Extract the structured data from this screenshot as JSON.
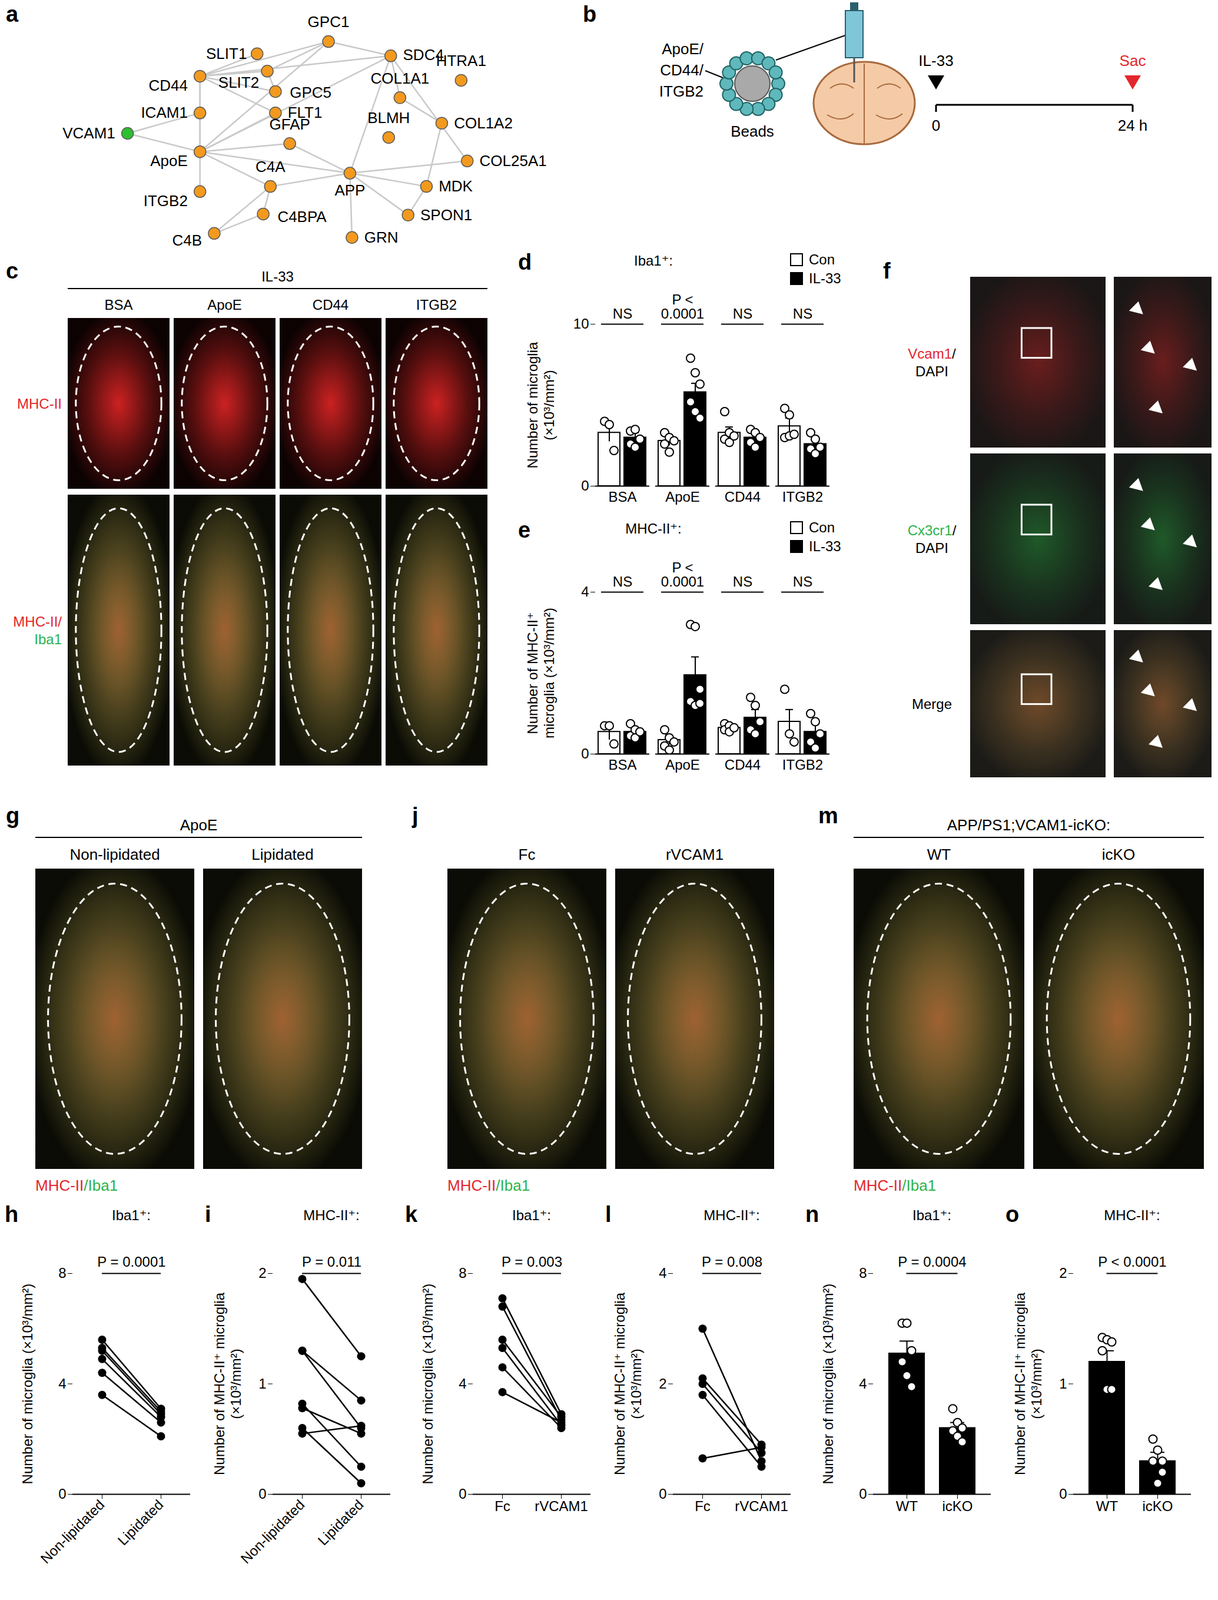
{
  "network": {
    "letter": "a",
    "nodes": [
      {
        "label": "SLIT1",
        "color": "#f39a1e"
      },
      {
        "label": "GPC1",
        "color": "#f39a1e"
      },
      {
        "label": "SLIT2",
        "color": "#f39a1e"
      },
      {
        "label": "GPC5",
        "color": "#f39a1e"
      },
      {
        "label": "SDC4",
        "color": "#f39a1e"
      },
      {
        "label": "CD44",
        "color": "#f39a1e"
      },
      {
        "label": "HTRA1",
        "color": "#f39a1e"
      },
      {
        "label": "COL1A1",
        "color": "#f39a1e"
      },
      {
        "label": "ICAM1",
        "color": "#f39a1e"
      },
      {
        "label": "FLT1",
        "color": "#f39a1e"
      },
      {
        "label": "COL1A2",
        "color": "#f39a1e"
      },
      {
        "label": "VCAM1",
        "color": "#2ec02e"
      },
      {
        "label": "GFAP",
        "color": "#f39a1e"
      },
      {
        "label": "BLMH",
        "color": "#f39a1e"
      },
      {
        "label": "ApoE",
        "color": "#f39a1e"
      },
      {
        "label": "APP",
        "color": "#f39a1e"
      },
      {
        "label": "COL25A1",
        "color": "#f39a1e"
      },
      {
        "label": "C4A",
        "color": "#f39a1e"
      },
      {
        "label": "MDK",
        "color": "#f39a1e"
      },
      {
        "label": "ITGB2",
        "color": "#f39a1e"
      },
      {
        "label": "C4BPA",
        "color": "#f39a1e"
      },
      {
        "label": "SPON1",
        "color": "#f39a1e"
      },
      {
        "label": "C4B",
        "color": "#f39a1e"
      },
      {
        "label": "GRN",
        "color": "#f39a1e"
      }
    ],
    "edges": [
      [
        "VCAM1",
        "ICAM1"
      ],
      [
        "VCAM1",
        "ApoE"
      ],
      [
        "CD44",
        "ICAM1"
      ],
      [
        "CD44",
        "ApoE"
      ],
      [
        "CD44",
        "SLIT1"
      ],
      [
        "CD44",
        "SLIT2"
      ],
      [
        "CD44",
        "GPC5"
      ],
      [
        "CD44",
        "FLT1"
      ],
      [
        "CD44",
        "SDC4"
      ],
      [
        "CD44",
        "GPC1"
      ],
      [
        "ICAM1",
        "ApoE"
      ],
      [
        "ApoE",
        "ITGB2"
      ],
      [
        "ApoE",
        "GPC1"
      ],
      [
        "ApoE",
        "FLT1"
      ],
      [
        "ApoE",
        "C4A"
      ],
      [
        "ApoE",
        "APP"
      ],
      [
        "ApoE",
        "GFAP"
      ],
      [
        "ApoE",
        "SDC4"
      ],
      [
        "APP",
        "GFAP"
      ],
      [
        "APP",
        "SDC4"
      ],
      [
        "APP",
        "MDK"
      ],
      [
        "APP",
        "GRN"
      ],
      [
        "APP",
        "SPON1"
      ],
      [
        "APP",
        "COL25A1"
      ],
      [
        "APP",
        "C4A"
      ],
      [
        "C4A",
        "C4B"
      ],
      [
        "C4A",
        "C4BPA"
      ],
      [
        "C4B",
        "C4BPA"
      ],
      [
        "SDC4",
        "COL1A1"
      ],
      [
        "SDC4",
        "COL25A1"
      ],
      [
        "SDC4",
        "GPC1"
      ],
      [
        "COL1A1",
        "COL1A2"
      ],
      [
        "COL1A2",
        "MDK"
      ],
      [
        "GPC1",
        "SLIT2"
      ],
      [
        "GPC5",
        "SLIT2"
      ],
      [
        "MDK",
        "SPON1"
      ]
    ]
  },
  "schematic": {
    "letter": "b",
    "bead_label": [
      "ApoE/",
      "CD44/",
      "ITGB2"
    ],
    "bead_caption": "Beads",
    "timeline": [
      {
        "label": "IL-33",
        "time": "0",
        "color": "#000000"
      },
      {
        "label": "Sac",
        "time": "24 h",
        "color": "#e3262b"
      }
    ]
  },
  "image_panels": [
    {
      "letter": "c",
      "title": "IL-33",
      "columns": [
        "BSA",
        "ApoE",
        "CD44",
        "ITGB2"
      ],
      "rows": [
        [
          [
            {
              "text": "MHC-II",
              "color": "#e3262b"
            }
          ]
        ],
        [
          [
            {
              "text": "MHC-II/",
              "color": "#e3262b"
            }
          ],
          [
            {
              "text": "Iba1",
              "color": "#2db34a"
            }
          ]
        ]
      ]
    },
    {
      "letter": "f",
      "rows": [
        [
          [
            {
              "text": "Vcam1",
              "color": "#e3262b"
            },
            {
              "text": "/",
              "color": "#000000"
            }
          ],
          [
            {
              "text": "DAPI",
              "color": "#000000"
            }
          ]
        ],
        [
          [
            {
              "text": "Cx3cr1",
              "color": "#2db34a"
            },
            {
              "text": "/",
              "color": "#000000"
            }
          ],
          [
            {
              "text": "DAPI",
              "color": "#000000"
            }
          ]
        ],
        [
          [
            {
              "text": "Merge",
              "color": "#000000"
            }
          ]
        ]
      ]
    },
    {
      "letter": "g",
      "title": "ApoE",
      "columns": [
        "Non-lipidated",
        "Lipidated"
      ],
      "caption": [
        {
          "text": "MHC-II",
          "color": "#e3262b"
        },
        {
          "text": "/Iba1",
          "color": "#2db34a"
        }
      ]
    },
    {
      "letter": "j",
      "columns": [
        "Fc",
        "rVCAM1"
      ],
      "caption": [
        {
          "text": "MHC-II",
          "color": "#e3262b"
        },
        {
          "text": "/Iba1",
          "color": "#2db34a"
        }
      ]
    },
    {
      "letter": "m",
      "title": "APP/PS1;VCAM1-icKO:",
      "columns": [
        "WT",
        "icKO"
      ],
      "caption": [
        {
          "text": "MHC-II",
          "color": "#e3262b"
        },
        {
          "text": "/Iba1",
          "color": "#2db34a"
        }
      ]
    }
  ],
  "chart_data": [
    {
      "letter": "d",
      "type": "bar",
      "title": "Iba1⁺:",
      "ylabel": "Number of microglia (×10³/mm²)",
      "categories": [
        "BSA",
        "ApoE",
        "CD44",
        "ITGB2"
      ],
      "series": [
        {
          "name": "Con",
          "color": "#ffffff",
          "values": [
            3.3,
            2.8,
            3.3,
            3.7
          ],
          "errors": [
            0.55,
            0.3,
            0.35,
            0.5
          ],
          "points": [
            [
              4.0,
              3.8,
              2.2
            ],
            [
              3.3,
              3.0,
              2.8,
              2.6,
              2.1
            ],
            [
              4.6,
              3.3,
              3.1,
              2.9,
              2.7
            ],
            [
              4.8,
              4.4,
              3.2,
              3.0,
              3.1
            ]
          ]
        },
        {
          "name": "IL-33",
          "color": "#000000",
          "values": [
            3.0,
            5.8,
            3.0,
            2.6
          ],
          "errors": [
            0.3,
            0.55,
            0.25,
            0.3
          ],
          "points": [
            [
              3.4,
              3.5,
              2.9,
              2.6,
              2.4
            ],
            [
              7.9,
              7.0,
              6.3,
              5.2,
              4.6,
              4.2
            ],
            [
              3.5,
              3.3,
              3.0,
              2.7,
              2.4
            ],
            [
              3.3,
              2.9,
              2.4,
              2.3,
              2.0
            ]
          ]
        }
      ],
      "ylim": [
        0,
        10
      ],
      "yticks": [
        0,
        10
      ],
      "legend": "top-right",
      "annotations": [
        {
          "category": "BSA",
          "label": "NS"
        },
        {
          "category": "ApoE",
          "label": "P < 0.0001"
        },
        {
          "category": "CD44",
          "label": "NS"
        },
        {
          "category": "ITGB2",
          "label": "NS"
        }
      ]
    },
    {
      "letter": "e",
      "type": "bar",
      "title": "MHC-II⁺:",
      "ylabel": "Number of MHC-II⁺ microglia (×10³/mm²)",
      "categories": [
        "BSA",
        "ApoE",
        "CD44",
        "ITGB2"
      ],
      "series": [
        {
          "name": "Con",
          "color": "#ffffff",
          "values": [
            0.55,
            0.35,
            0.65,
            0.8
          ],
          "errors": [
            0.2,
            0.12,
            0.05,
            0.3
          ],
          "points": [
            [
              0.7,
              0.7,
              0.25
            ],
            [
              0.6,
              0.4,
              0.3,
              0.2,
              0.1
            ],
            [
              0.75,
              0.7,
              0.65,
              0.6,
              0.55
            ],
            [
              1.6,
              0.5,
              0.3
            ]
          ]
        },
        {
          "name": "IL-33",
          "color": "#000000",
          "values": [
            0.55,
            1.95,
            0.9,
            0.55
          ],
          "errors": [
            0.12,
            0.45,
            0.2,
            0.2
          ],
          "points": [
            [
              0.75,
              0.6,
              0.55,
              0.45,
              0.4
            ],
            [
              3.2,
              3.15,
              1.6,
              1.3,
              1.2,
              1.25
            ],
            [
              1.4,
              1.2,
              0.8,
              0.6,
              0.5
            ],
            [
              1.0,
              0.8,
              0.5,
              0.3,
              0.15
            ]
          ]
        }
      ],
      "ylim": [
        0,
        4
      ],
      "yticks": [
        0,
        4
      ],
      "legend": "top-right",
      "annotations": [
        {
          "category": "BSA",
          "label": "NS"
        },
        {
          "category": "ApoE",
          "label": "P < 0.0001"
        },
        {
          "category": "CD44",
          "label": "NS"
        },
        {
          "category": "ITGB2",
          "label": "NS"
        }
      ]
    },
    {
      "letter": "h",
      "type": "paired",
      "title": "Iba1⁺:",
      "ylabel": "Number of microglia (×10³/mm²)",
      "categories": [
        "Non-lipidated",
        "Lipidated"
      ],
      "color": "#000000",
      "pairs": [
        [
          5.6,
          3.1
        ],
        [
          5.3,
          3.0
        ],
        [
          5.2,
          2.9
        ],
        [
          4.9,
          2.8
        ],
        [
          4.4,
          2.6
        ],
        [
          3.6,
          2.1
        ]
      ],
      "ylim": [
        0,
        8
      ],
      "yticks": [
        0,
        4,
        8
      ],
      "annotation": "P = 0.0001"
    },
    {
      "letter": "i",
      "type": "paired",
      "title": "MHC-II⁺:",
      "ylabel": "Number of MHC-II⁺ microglia (×10³/mm²)",
      "categories": [
        "Non-lipidated",
        "Lipidated"
      ],
      "color": "#000000",
      "pairs": [
        [
          1.95,
          1.25
        ],
        [
          1.3,
          0.85
        ],
        [
          1.3,
          0.6
        ],
        [
          0.82,
          0.25
        ],
        [
          0.78,
          0.55
        ],
        [
          0.6,
          0.1
        ],
        [
          0.55,
          0.62
        ]
      ],
      "ylim": [
        0,
        2
      ],
      "yticks": [
        0,
        1,
        2
      ],
      "annotation": "P = 0.011"
    },
    {
      "letter": "k",
      "type": "paired",
      "title": "Iba1⁺:",
      "ylabel": "Number of microglia (×10³/mm²)",
      "categories": [
        "Fc",
        "rVCAM1"
      ],
      "color": "#000000",
      "pairs": [
        [
          7.1,
          2.9
        ],
        [
          6.8,
          2.7
        ],
        [
          5.6,
          2.8
        ],
        [
          5.3,
          2.5
        ],
        [
          4.6,
          2.4
        ],
        [
          3.7,
          2.6
        ]
      ],
      "ylim": [
        0,
        8
      ],
      "yticks": [
        0,
        4,
        8
      ],
      "annotation": "P = 0.003"
    },
    {
      "letter": "l",
      "type": "paired",
      "title": "MHC-II⁺:",
      "ylabel": "Number of MHC-II⁺ microglia (×10³/mm²)",
      "categories": [
        "Fc",
        "rVCAM1"
      ],
      "color": "#000000",
      "pairs": [
        [
          3.0,
          0.6
        ],
        [
          2.1,
          0.9
        ],
        [
          2.0,
          0.75
        ],
        [
          1.8,
          0.5
        ],
        [
          0.65,
          0.85
        ]
      ],
      "ylim": [
        0,
        4
      ],
      "yticks": [
        0,
        2,
        4
      ],
      "annotation": "P = 0.008"
    },
    {
      "letter": "n",
      "type": "bar",
      "title": "Iba1⁺:",
      "ylabel": "Number of microglia (×10³/mm²)",
      "categories": [
        "WT",
        "icKO"
      ],
      "values": [
        5.1,
        2.4
      ],
      "errors": [
        0.45,
        0.2
      ],
      "colors": [
        "#000000",
        "#000000"
      ],
      "points": [
        [
          6.2,
          6.2,
          5.2,
          4.8,
          4.3,
          3.9
        ],
        [
          3.1,
          2.6,
          2.4,
          2.3,
          2.1,
          1.9
        ]
      ],
      "ylim": [
        0,
        8
      ],
      "yticks": [
        0,
        4,
        8
      ],
      "annotation": "P = 0.0004"
    },
    {
      "letter": "o",
      "type": "bar",
      "title": "MHC-II⁺:",
      "ylabel": "Number of MHC-II⁺ microglia (×10³/mm²)",
      "categories": [
        "WT",
        "icKO"
      ],
      "values": [
        1.2,
        0.3
      ],
      "errors": [
        0.1,
        0.08
      ],
      "colors": [
        "#000000",
        "#000000"
      ],
      "points": [
        [
          1.42,
          1.4,
          1.38,
          1.3,
          0.95,
          0.95
        ],
        [
          0.5,
          0.4,
          0.3,
          0.3,
          0.1,
          0.2
        ]
      ],
      "ylim": [
        0,
        2
      ],
      "yticks": [
        0,
        1,
        2
      ],
      "annotation": "P < 0.0001"
    }
  ]
}
